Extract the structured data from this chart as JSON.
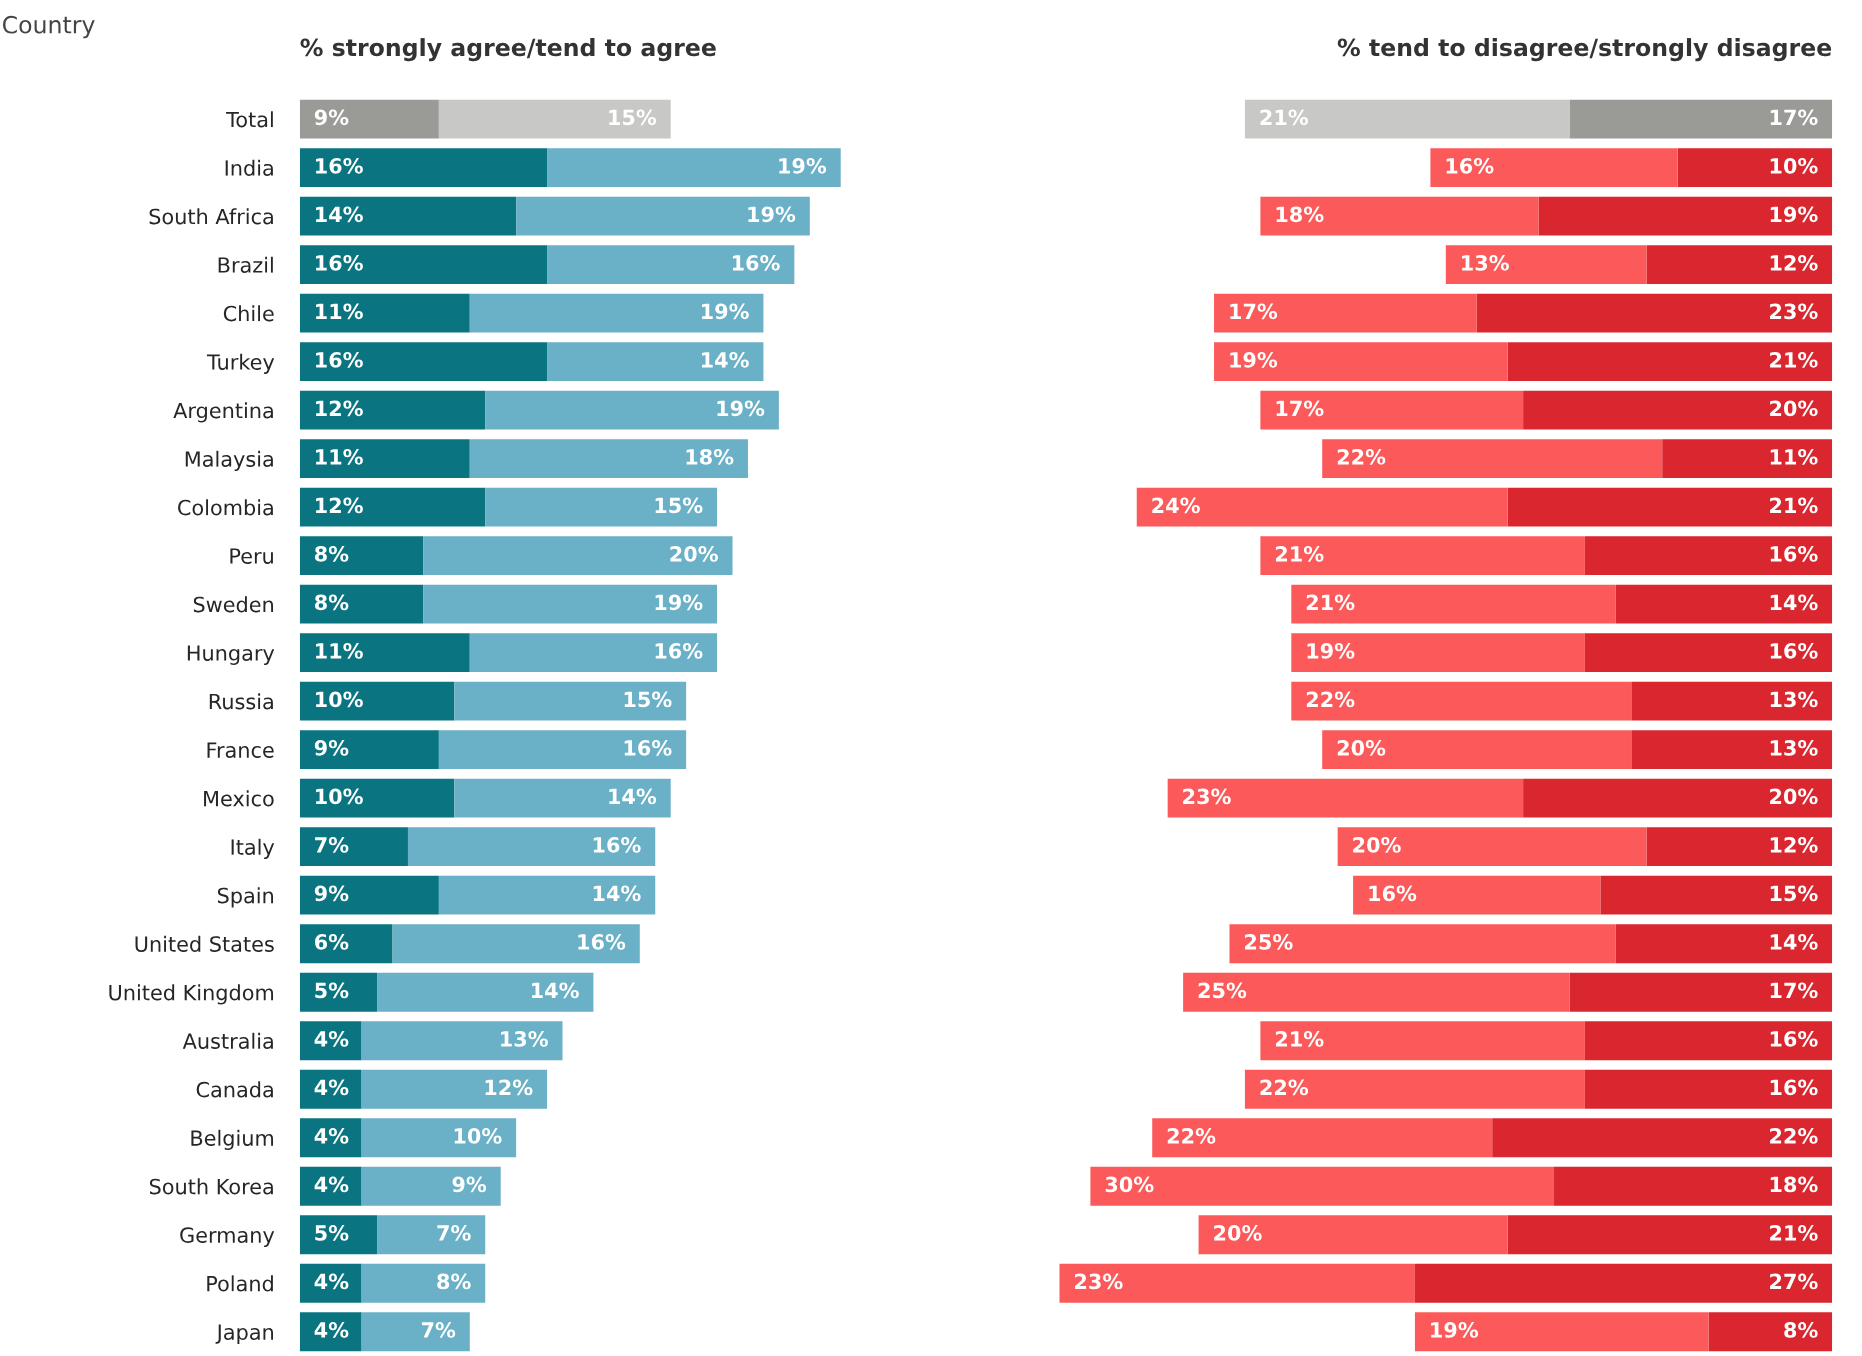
{
  "chart_data": [
    {
      "type": "bar",
      "orientation": "horizontal",
      "stacked": true,
      "tick_labels": "y",
      "grid": false,
      "legend": false,
      "title": "% strongly agree/tend to agree",
      "ylabel": "Country",
      "categories": [
        "Total",
        "India",
        "South Africa",
        "Brazil",
        "Chile",
        "Turkey",
        "Argentina",
        "Malaysia",
        "Colombia",
        "Peru",
        "Sweden",
        "Hungary",
        "Russia",
        "France",
        "Mexico",
        "Italy",
        "Spain",
        "United States",
        "United Kingdom",
        "Australia",
        "Canada",
        "Belgium",
        "South Korea",
        "Germany",
        "Poland",
        "Japan"
      ],
      "series": [
        {
          "colors": [
            "#9a9a96",
            "#0a7580",
            "#0a7580",
            "#0a7580",
            "#0a7580",
            "#0a7580",
            "#0a7580",
            "#0a7580",
            "#0a7580",
            "#0a7580",
            "#0a7580",
            "#0a7580",
            "#0a7580",
            "#0a7580",
            "#0a7580",
            "#0a7580",
            "#0a7580",
            "#0a7580",
            "#0a7580",
            "#0a7580",
            "#0a7580",
            "#0a7580",
            "#0a7580",
            "#0a7580",
            "#0a7580",
            "#0a7580"
          ],
          "values": [
            9,
            16,
            14,
            16,
            11,
            16,
            12,
            11,
            12,
            8,
            8,
            11,
            10,
            9,
            10,
            7,
            9,
            6,
            5,
            4,
            4,
            4,
            4,
            5,
            4,
            4
          ],
          "value_labels": [
            "9%",
            "16%",
            "14%",
            "16%",
            "11%",
            "16%",
            "12%",
            "11%",
            "12%",
            "8%",
            "8%",
            "11%",
            "10%",
            "9%",
            "10%",
            "7%",
            "9%",
            "6%",
            "5%",
            "4%",
            "4%",
            "4%",
            "4%",
            "5%",
            "4%",
            "4%"
          ]
        },
        {
          "colors": [
            "#c8c8c6",
            "#6ab0c6",
            "#6ab0c6",
            "#6ab0c6",
            "#6ab0c6",
            "#6ab0c6",
            "#6ab0c6",
            "#6ab0c6",
            "#6ab0c6",
            "#6ab0c6",
            "#6ab0c6",
            "#6ab0c6",
            "#6ab0c6",
            "#6ab0c6",
            "#6ab0c6",
            "#6ab0c6",
            "#6ab0c6",
            "#6ab0c6",
            "#6ab0c6",
            "#6ab0c6",
            "#6ab0c6",
            "#6ab0c6",
            "#6ab0c6",
            "#6ab0c6",
            "#6ab0c6",
            "#6ab0c6"
          ],
          "values": [
            15,
            19,
            19,
            16,
            19,
            14,
            19,
            18,
            15,
            20,
            19,
            16,
            15,
            16,
            14,
            16,
            14,
            16,
            14,
            13,
            12,
            10,
            9,
            7,
            8,
            7
          ],
          "value_labels": [
            "15%",
            "19%",
            "19%",
            "16%",
            "19%",
            "14%",
            "19%",
            "18%",
            "15%",
            "20%",
            "19%",
            "16%",
            "15%",
            "16%",
            "14%",
            "16%",
            "14%",
            "16%",
            "14%",
            "13%",
            "12%",
            "10%",
            "9%",
            "7%",
            "8%",
            "7%"
          ]
        }
      ]
    },
    {
      "type": "bar",
      "orientation": "horizontal",
      "stacked": true,
      "tick_labels": false,
      "grid": false,
      "legend": false,
      "title": "% tend to disagree/strongly disagree",
      "categories": [
        null,
        null,
        null,
        null,
        null,
        null,
        null,
        null,
        null,
        null,
        null,
        null,
        null,
        null,
        null,
        null,
        null,
        null,
        null,
        null,
        null,
        null,
        null,
        null,
        null,
        null
      ],
      "series": [
        {
          "colors": [
            "#9a9a96",
            "#d9262f",
            "#d9262f",
            "#d9262f",
            "#d9262f",
            "#d9262f",
            "#d9262f",
            "#d9262f",
            "#d9262f",
            "#d9262f",
            "#d9262f",
            "#d9262f",
            "#d9262f",
            "#d9262f",
            "#d9262f",
            "#d9262f",
            "#d9262f",
            "#d9262f",
            "#d9262f",
            "#d9262f",
            "#d9262f",
            "#d9262f",
            "#d9262f",
            "#d9262f",
            "#d9262f",
            "#d9262f"
          ],
          "values": [
            17,
            10,
            19,
            12,
            23,
            21,
            20,
            11,
            21,
            16,
            14,
            16,
            13,
            13,
            20,
            12,
            15,
            14,
            17,
            16,
            16,
            22,
            18,
            21,
            27,
            8
          ],
          "value_labels": [
            "17%",
            "10%",
            "19%",
            "12%",
            "23%",
            "21%",
            "20%",
            "11%",
            "21%",
            "16%",
            "14%",
            "16%",
            "13%",
            "13%",
            "20%",
            "12%",
            "15%",
            "14%",
            "17%",
            "16%",
            "16%",
            "22%",
            "18%",
            "21%",
            "27%",
            "8%"
          ]
        },
        {
          "colors": [
            "#c8c8c6",
            "#fc5a5a",
            "#fc5a5a",
            "#fc5a5a",
            "#fc5a5a",
            "#fc5a5a",
            "#fc5a5a",
            "#fc5a5a",
            "#fc5a5a",
            "#fc5a5a",
            "#fc5a5a",
            "#fc5a5a",
            "#fc5a5a",
            "#fc5a5a",
            "#fc5a5a",
            "#fc5a5a",
            "#fc5a5a",
            "#fc5a5a",
            "#fc5a5a",
            "#fc5a5a",
            "#fc5a5a",
            "#fc5a5a",
            "#fc5a5a",
            "#fc5a5a",
            "#fc5a5a",
            "#fc5a5a"
          ],
          "values": [
            21,
            16,
            18,
            13,
            17,
            19,
            17,
            22,
            24,
            21,
            21,
            19,
            22,
            20,
            23,
            20,
            16,
            25,
            25,
            21,
            22,
            22,
            30,
            20,
            23,
            19
          ],
          "value_labels": [
            "21%",
            "16%",
            "18%",
            "13%",
            "17%",
            "19%",
            "17%",
            "22%",
            "24%",
            "21%",
            "21%",
            "19%",
            "22%",
            "20%",
            "23%",
            "20%",
            "16%",
            "25%",
            "25%",
            "21%",
            "22%",
            "22%",
            "30%",
            "20%",
            "23%",
            "19%"
          ]
        }
      ]
    }
  ]
}
